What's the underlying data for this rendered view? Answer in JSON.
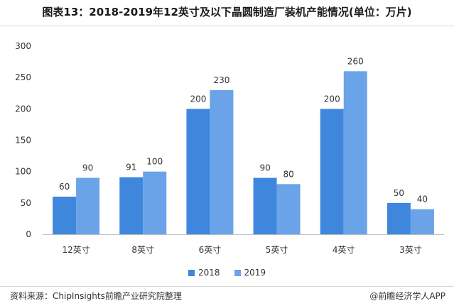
{
  "title": "图表13：2018-2019年12英寸及以下晶圆制造厂装机产能情况(单位：万片)",
  "source": "资料来源：ChipInsights前瞻产业研究院整理",
  "brand": "@前瞻经济学人APP",
  "colors": {
    "s2018": "#3e87dd",
    "s2019": "#6aa3e8"
  },
  "chart_data": {
    "type": "bar",
    "title": "图表13：2018-2019年12英寸及以下晶圆制造厂装机产能情况(单位：万片)",
    "categories": [
      "12英寸",
      "8英寸",
      "6英寸",
      "5英寸",
      "4英寸",
      "3英寸"
    ],
    "series": [
      {
        "name": "2018",
        "values": [
          60,
          91,
          200,
          90,
          200,
          50
        ]
      },
      {
        "name": "2019",
        "values": [
          90,
          100,
          230,
          80,
          260,
          40
        ]
      }
    ],
    "ylim": [
      0,
      300
    ],
    "yticks": [
      0,
      50,
      100,
      150,
      200,
      250,
      300
    ],
    "xlabel": "",
    "ylabel": "",
    "grid": false,
    "legend": "bottom"
  }
}
